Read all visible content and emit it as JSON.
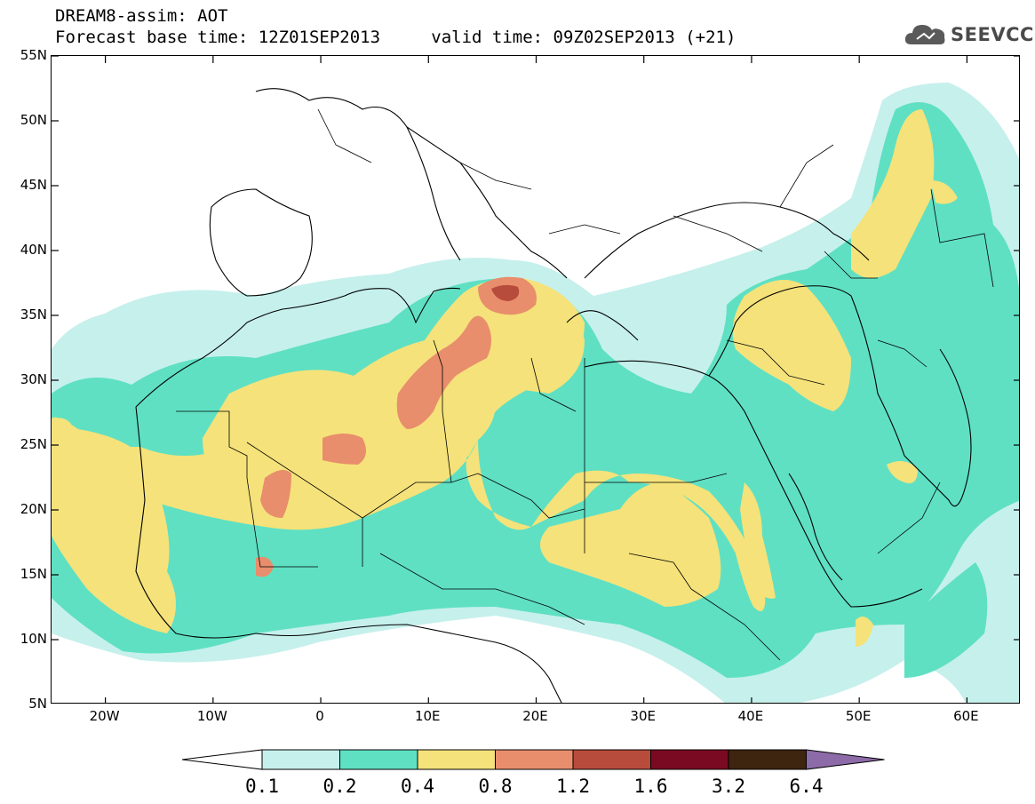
{
  "header": {
    "title_line1": "DREAM8-assim: AOT",
    "base_time_label": "Forecast base time: 12Z01SEP2013",
    "valid_time_label": "valid time: 09Z02SEP2013 (+21)"
  },
  "logo": {
    "text": "SEEVCCC",
    "icon": "cloud-icon"
  },
  "map": {
    "lon_range": [
      -25,
      65
    ],
    "lat_range": [
      5,
      55
    ],
    "lat_ticks": [
      "55N",
      "50N",
      "45N",
      "40N",
      "35N",
      "30N",
      "25N",
      "20N",
      "15N",
      "10N",
      "5N"
    ],
    "lat_tick_values": [
      55,
      50,
      45,
      40,
      35,
      30,
      25,
      20,
      15,
      10,
      5
    ],
    "lon_ticks": [
      "20W",
      "10W",
      "0",
      "10E",
      "20E",
      "30E",
      "40E",
      "50E",
      "60E"
    ],
    "lon_tick_values": [
      -20,
      -10,
      0,
      10,
      20,
      30,
      40,
      50,
      60
    ]
  },
  "colorbar": {
    "labels": [
      "0.1",
      "0.2",
      "0.4",
      "0.8",
      "1.2",
      "1.6",
      "3.2",
      "6.4"
    ],
    "colors": [
      "#c6f0ec",
      "#5fe0c3",
      "#f5e27a",
      "#e88e6c",
      "#b84c3c",
      "#7a0a22",
      "#3d2510",
      "#8d6aa8"
    ],
    "under_color": "#ffffff",
    "over_color": "#8d6aa8"
  }
}
